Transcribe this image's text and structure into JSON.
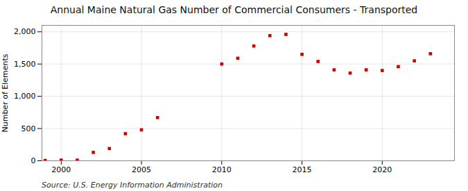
{
  "chart_data": {
    "type": "scatter",
    "title": "Annual Maine Natural Gas Number of Commercial Consumers - Transported",
    "ylabel": "Number of Elements",
    "annotations": [
      "Source: U.S. Energy Information Administration"
    ],
    "x": [
      1999,
      2000,
      2001,
      2002,
      2003,
      2004,
      2005,
      2006,
      2010,
      2011,
      2012,
      2013,
      2014,
      2015,
      2016,
      2017,
      2018,
      2019,
      2020,
      2021,
      2022,
      2023
    ],
    "values": [
      5,
      10,
      10,
      130,
      190,
      420,
      480,
      670,
      1500,
      1590,
      1780,
      1940,
      1960,
      1650,
      1540,
      1410,
      1360,
      1410,
      1400,
      1460,
      1550,
      1660
    ],
    "color": "#cc0000",
    "marker": "square",
    "xlim": [
      1998.8,
      2024.5
    ],
    "xticks": [
      2000,
      2005,
      2010,
      2015,
      2020
    ],
    "ylim": [
      0,
      2100
    ],
    "yticks": [
      0,
      500,
      {
        "value": 1000,
        "label": "1,000"
      },
      {
        "value": 1500,
        "label": "1,500"
      },
      {
        "value": 2000,
        "label": "2,000"
      }
    ],
    "grid": true
  }
}
